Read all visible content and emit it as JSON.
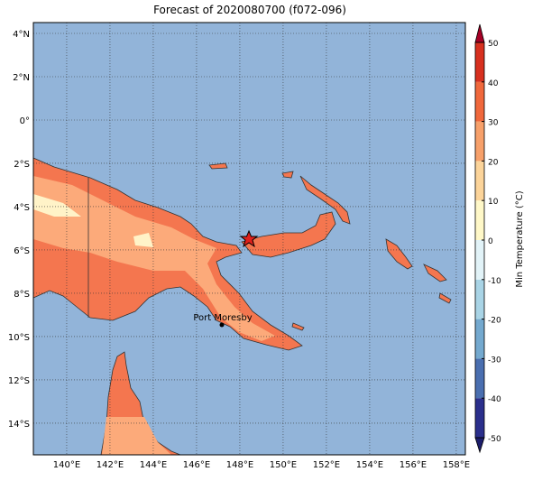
{
  "map": {
    "title": "Forecast of 2020080700 (f072-096)",
    "xlim": [
      138.46,
      158.42
    ],
    "ylim": [
      -15.46,
      4.5
    ],
    "xticks": [
      {
        "value": 140,
        "label": "140°E"
      },
      {
        "value": 142,
        "label": "142°E"
      },
      {
        "value": 144,
        "label": "144°E"
      },
      {
        "value": 146,
        "label": "146°E"
      },
      {
        "value": 148,
        "label": "148°E"
      },
      {
        "value": 150,
        "label": "150°E"
      },
      {
        "value": 152,
        "label": "152°E"
      },
      {
        "value": 154,
        "label": "154°E"
      },
      {
        "value": 156,
        "label": "156°E"
      },
      {
        "value": 158,
        "label": "158°E"
      }
    ],
    "yticks": [
      {
        "value": 4,
        "label": "4°N"
      },
      {
        "value": 2,
        "label": "2°N"
      },
      {
        "value": 0,
        "label": "0°"
      },
      {
        "value": -2,
        "label": "2°S"
      },
      {
        "value": -4,
        "label": "4°S"
      },
      {
        "value": -6,
        "label": "6°S"
      },
      {
        "value": -8,
        "label": "8°S"
      },
      {
        "value": -10,
        "label": "10°S"
      },
      {
        "value": -12,
        "label": "12°S"
      },
      {
        "value": -14,
        "label": "14°S"
      }
    ],
    "city": "Port Moresby",
    "colorbar": {
      "label": "Min Temperature (°C)",
      "lim": [
        -50,
        50
      ],
      "ticks": [
        -50,
        -40,
        -30,
        -20,
        -10,
        0,
        10,
        20,
        30,
        40,
        50
      ],
      "colors": [
        "#2b2f8c",
        "#4a6fb0",
        "#74a9cf",
        "#a9d4e6",
        "#e2f3f8",
        "#fff8c8",
        "#fcd49a",
        "#f7a06a",
        "#f0683c",
        "#d7301f"
      ],
      "under_color": "#1c1d6b",
      "over_color": "#a50026"
    }
  }
}
